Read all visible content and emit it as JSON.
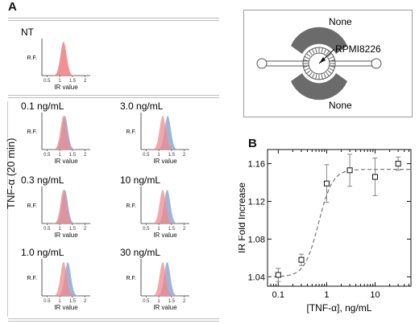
{
  "panel_a_label": "A",
  "panel_b_label": "B",
  "side_axis_label": "TNF-α (20 min)",
  "schematic": {
    "top_label": "None",
    "bottom_label": "None",
    "center_label": "RPMI8226"
  },
  "histogram_axes": {
    "ylabel": "R.F.",
    "xlabel": "IR value",
    "ticks": [
      "0.5",
      "1",
      "1.5",
      "2"
    ]
  },
  "colors": {
    "red": "#f08a8e",
    "blue": "#8fa8cf",
    "overlap": "#8f6a86"
  },
  "histograms": [
    {
      "title": "NT",
      "red_center": 1.15,
      "blue_center": null
    },
    {
      "title": "0.1 ng/mL",
      "red_center": 1.15,
      "blue_center": 1.2
    },
    {
      "title": "3.0 ng/mL",
      "red_center": 1.15,
      "blue_center": 1.35
    },
    {
      "title": "0.3 ng/mL",
      "red_center": 1.15,
      "blue_center": 1.2
    },
    {
      "title": "10 ng/mL",
      "red_center": 1.15,
      "blue_center": 1.33
    },
    {
      "title": "1.0 ng/mL",
      "red_center": 1.15,
      "blue_center": 1.32
    },
    {
      "title": "30 ng/mL",
      "red_center": 1.15,
      "blue_center": 1.33
    }
  ],
  "chart_data": {
    "type": "scatter",
    "xlabel": "[TNF-α], ng/mL",
    "ylabel": "IR Fold Increase",
    "xscale": "log",
    "xlim": [
      0.06,
      55
    ],
    "ylim": [
      1.03,
      1.175
    ],
    "xticks": [
      "0.1",
      "1",
      "10"
    ],
    "yticks": [
      "1.04",
      "1.08",
      "1.12",
      "1.16"
    ],
    "series": [
      {
        "x": [
          0.1,
          0.3,
          1.0,
          3.0,
          10,
          30
        ],
        "y": [
          1.042,
          1.058,
          1.139,
          1.153,
          1.146,
          1.16
        ],
        "err": [
          0.007,
          0.006,
          0.02,
          0.017,
          0.02,
          0.007
        ]
      }
    ],
    "fit": {
      "bottom": 1.04,
      "top": 1.154,
      "ec50": 0.68,
      "hill": 3.0
    }
  }
}
